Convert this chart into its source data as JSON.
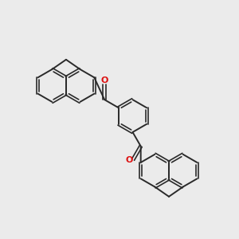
{
  "bg": "#ebebeb",
  "bc": "#2a2a2a",
  "oc": "#dd1111",
  "lw": 1.4,
  "lw_dbl": 1.2,
  "figsize": [
    3.0,
    3.0
  ],
  "dpi": 100
}
